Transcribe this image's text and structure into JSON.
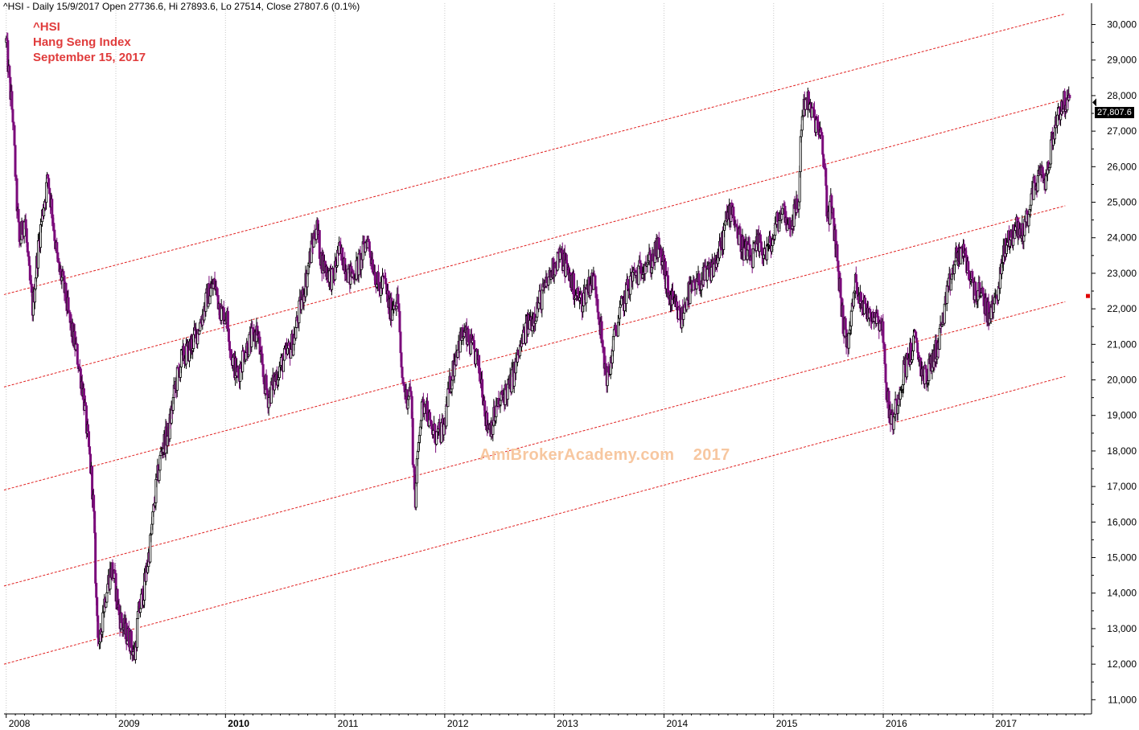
{
  "header": {
    "info_line": "^HSI - Daily 15/9/2017 Open 27736.6, Hi 27893.6, Lo 27514, Close 27807.6 (0.1%)"
  },
  "title_block": {
    "symbol": "^HSI",
    "name": "Hang Seng Index",
    "date": "September 15, 2017"
  },
  "watermark": "AmiBrokerAcademy.com    2017",
  "last_price_label": "27,807.6",
  "colors": {
    "background": "#ffffff",
    "price_bars": "#7a0a7a",
    "price_bars_dark": "#000000",
    "channel_lines": "#e02020",
    "grid": "#c8c8c8",
    "title_text": "#e03c3c",
    "watermark": "#f7c7a0"
  },
  "chart_data": {
    "type": "candlestick",
    "title": "^HSI Hang Seng Index",
    "xlabel": "",
    "ylabel": "",
    "y_scale": "linear",
    "ylim": [
      10600,
      30600
    ],
    "x_range": [
      2007.98,
      2017.9
    ],
    "grid": "vertical yearly gridlines",
    "y_ticks": [
      "11,000",
      "12,000",
      "13,000",
      "14,000",
      "15,000",
      "16,000",
      "17,000",
      "18,000",
      "19,000",
      "20,000",
      "21,000",
      "22,000",
      "23,000",
      "24,000",
      "25,000",
      "26,000",
      "27,000",
      "28,000",
      "29,000",
      "30,000"
    ],
    "y_tick_values": [
      11000,
      12000,
      13000,
      14000,
      15000,
      16000,
      17000,
      18000,
      19000,
      20000,
      21000,
      22000,
      23000,
      24000,
      25000,
      26000,
      27000,
      28000,
      29000,
      30000
    ],
    "x_ticks": [
      {
        "label": "2008",
        "value": 2008.0
      },
      {
        "label": "2009",
        "value": 2009.0
      },
      {
        "label": "2010",
        "value": 2010.0
      },
      {
        "label": "2011",
        "value": 2011.0
      },
      {
        "label": "2012",
        "value": 2012.0
      },
      {
        "label": "2013",
        "value": 2013.0
      },
      {
        "label": "2014",
        "value": 2014.0
      },
      {
        "label": "2015",
        "value": 2015.0
      },
      {
        "label": "2016",
        "value": 2016.0
      },
      {
        "label": "2017",
        "value": 2017.0
      }
    ],
    "price_path": [
      [
        2008.0,
        29500
      ],
      [
        2008.03,
        28300
      ],
      [
        2008.06,
        27400
      ],
      [
        2008.09,
        25300
      ],
      [
        2008.12,
        23800
      ],
      [
        2008.17,
        24600
      ],
      [
        2008.2,
        23200
      ],
      [
        2008.24,
        22000
      ],
      [
        2008.28,
        23400
      ],
      [
        2008.33,
        24700
      ],
      [
        2008.38,
        25700
      ],
      [
        2008.42,
        24700
      ],
      [
        2008.47,
        23200
      ],
      [
        2008.52,
        22700
      ],
      [
        2008.58,
        21600
      ],
      [
        2008.64,
        20800
      ],
      [
        2008.7,
        19700
      ],
      [
        2008.74,
        18400
      ],
      [
        2008.78,
        17200
      ],
      [
        2008.8,
        16000
      ],
      [
        2008.82,
        13800
      ],
      [
        2008.85,
        12300
      ],
      [
        2008.88,
        13500
      ],
      [
        2008.92,
        14200
      ],
      [
        2008.96,
        14700
      ],
      [
        2008.99,
        14300
      ],
      [
        2009.03,
        13400
      ],
      [
        2009.08,
        12900
      ],
      [
        2009.13,
        12700
      ],
      [
        2009.17,
        12200
      ],
      [
        2009.2,
        13300
      ],
      [
        2009.26,
        14200
      ],
      [
        2009.31,
        15300
      ],
      [
        2009.36,
        16800
      ],
      [
        2009.42,
        18100
      ],
      [
        2009.48,
        18500
      ],
      [
        2009.54,
        19800
      ],
      [
        2009.6,
        20600
      ],
      [
        2009.66,
        20800
      ],
      [
        2009.72,
        21200
      ],
      [
        2009.78,
        21700
      ],
      [
        2009.84,
        22400
      ],
      [
        2009.9,
        22700
      ],
      [
        2009.96,
        21900
      ],
      [
        2010.01,
        21800
      ],
      [
        2010.06,
        20600
      ],
      [
        2010.11,
        20100
      ],
      [
        2010.17,
        20800
      ],
      [
        2010.23,
        21100
      ],
      [
        2010.29,
        21400
      ],
      [
        2010.34,
        20100
      ],
      [
        2010.39,
        19500
      ],
      [
        2010.44,
        19900
      ],
      [
        2010.5,
        20400
      ],
      [
        2010.56,
        20700
      ],
      [
        2010.62,
        21100
      ],
      [
        2010.67,
        21900
      ],
      [
        2010.72,
        22600
      ],
      [
        2010.78,
        23600
      ],
      [
        2010.83,
        24400
      ],
      [
        2010.87,
        23400
      ],
      [
        2010.92,
        23100
      ],
      [
        2010.98,
        22800
      ],
      [
        2011.03,
        23600
      ],
      [
        2011.08,
        23400
      ],
      [
        2011.13,
        22900
      ],
      [
        2011.19,
        23100
      ],
      [
        2011.24,
        23400
      ],
      [
        2011.29,
        24000
      ],
      [
        2011.35,
        23200
      ],
      [
        2011.4,
        22500
      ],
      [
        2011.45,
        22800
      ],
      [
        2011.5,
        21900
      ],
      [
        2011.55,
        22300
      ],
      [
        2011.58,
        22100
      ],
      [
        2011.6,
        20200
      ],
      [
        2011.65,
        19500
      ],
      [
        2011.69,
        19800
      ],
      [
        2011.71,
        17800
      ],
      [
        2011.73,
        16600
      ],
      [
        2011.77,
        18800
      ],
      [
        2011.82,
        19500
      ],
      [
        2011.87,
        18600
      ],
      [
        2011.93,
        18400
      ],
      [
        2011.99,
        18600
      ],
      [
        2012.05,
        19900
      ],
      [
        2012.11,
        20900
      ],
      [
        2012.17,
        21300
      ],
      [
        2012.23,
        21000
      ],
      [
        2012.29,
        20600
      ],
      [
        2012.34,
        19900
      ],
      [
        2012.38,
        18800
      ],
      [
        2012.42,
        18700
      ],
      [
        2012.48,
        19200
      ],
      [
        2012.54,
        19600
      ],
      [
        2012.59,
        19800
      ],
      [
        2012.64,
        20300
      ],
      [
        2012.69,
        20900
      ],
      [
        2012.75,
        21500
      ],
      [
        2012.81,
        21800
      ],
      [
        2012.86,
        22200
      ],
      [
        2012.92,
        22600
      ],
      [
        2012.98,
        23100
      ],
      [
        2013.04,
        23500
      ],
      [
        2013.09,
        23300
      ],
      [
        2013.14,
        22900
      ],
      [
        2013.2,
        22400
      ],
      [
        2013.25,
        22200
      ],
      [
        2013.31,
        22700
      ],
      [
        2013.37,
        22800
      ],
      [
        2013.41,
        21800
      ],
      [
        2013.45,
        20500
      ],
      [
        2013.49,
        20000
      ],
      [
        2013.54,
        21100
      ],
      [
        2013.6,
        21900
      ],
      [
        2013.65,
        22400
      ],
      [
        2013.71,
        22900
      ],
      [
        2013.77,
        23000
      ],
      [
        2013.83,
        23400
      ],
      [
        2013.88,
        23300
      ],
      [
        2013.94,
        23700
      ],
      [
        2013.99,
        23300
      ],
      [
        2014.04,
        22400
      ],
      [
        2014.1,
        22000
      ],
      [
        2014.16,
        21700
      ],
      [
        2014.21,
        22400
      ],
      [
        2014.27,
        22500
      ],
      [
        2014.33,
        22800
      ],
      [
        2014.39,
        22900
      ],
      [
        2014.45,
        23200
      ],
      [
        2014.51,
        23600
      ],
      [
        2014.57,
        24500
      ],
      [
        2014.62,
        24900
      ],
      [
        2014.68,
        24000
      ],
      [
        2014.74,
        23600
      ],
      [
        2014.8,
        23400
      ],
      [
        2014.86,
        23800
      ],
      [
        2014.92,
        23600
      ],
      [
        2014.98,
        23800
      ],
      [
        2015.04,
        24500
      ],
      [
        2015.09,
        24800
      ],
      [
        2015.14,
        24300
      ],
      [
        2015.19,
        24700
      ],
      [
        2015.23,
        25000
      ],
      [
        2015.25,
        27200
      ],
      [
        2015.29,
        28000
      ],
      [
        2015.33,
        27600
      ],
      [
        2015.38,
        27300
      ],
      [
        2015.43,
        26800
      ],
      [
        2015.47,
        25800
      ],
      [
        2015.49,
        24500
      ],
      [
        2015.52,
        24900
      ],
      [
        2015.56,
        24000
      ],
      [
        2015.6,
        22700
      ],
      [
        2015.63,
        21700
      ],
      [
        2015.67,
        21000
      ],
      [
        2015.7,
        21500
      ],
      [
        2015.74,
        22700
      ],
      [
        2015.78,
        22500
      ],
      [
        2015.83,
        22000
      ],
      [
        2015.88,
        21900
      ],
      [
        2015.94,
        21800
      ],
      [
        2015.99,
        21600
      ],
      [
        2016.02,
        20000
      ],
      [
        2016.05,
        19200
      ],
      [
        2016.08,
        18800
      ],
      [
        2016.12,
        19300
      ],
      [
        2016.18,
        20200
      ],
      [
        2016.24,
        20700
      ],
      [
        2016.29,
        21100
      ],
      [
        2016.34,
        20400
      ],
      [
        2016.39,
        20000
      ],
      [
        2016.44,
        20500
      ],
      [
        2016.5,
        21000
      ],
      [
        2016.56,
        22000
      ],
      [
        2016.62,
        22900
      ],
      [
        2016.67,
        23500
      ],
      [
        2016.72,
        23600
      ],
      [
        2016.77,
        23200
      ],
      [
        2016.82,
        22600
      ],
      [
        2016.87,
        22400
      ],
      [
        2016.92,
        22200
      ],
      [
        2016.96,
        21800
      ],
      [
        2017.0,
        22000
      ],
      [
        2017.06,
        22800
      ],
      [
        2017.11,
        23700
      ],
      [
        2017.16,
        24000
      ],
      [
        2017.21,
        24300
      ],
      [
        2017.26,
        24100
      ],
      [
        2017.31,
        24500
      ],
      [
        2017.36,
        25300
      ],
      [
        2017.41,
        25700
      ],
      [
        2017.45,
        25800
      ],
      [
        2017.49,
        25600
      ],
      [
        2017.53,
        26600
      ],
      [
        2017.58,
        27400
      ],
      [
        2017.62,
        27700
      ],
      [
        2017.66,
        27800
      ],
      [
        2017.7,
        27800
      ]
    ],
    "channel_lines": [
      {
        "x": [
          2007.98,
          2017.66
        ],
        "y": [
          22400,
          30300
        ]
      },
      {
        "x": [
          2007.98,
          2017.66
        ],
        "y": [
          19800,
          27900
        ]
      },
      {
        "x": [
          2007.98,
          2017.66
        ],
        "y": [
          16900,
          24900
        ]
      },
      {
        "x": [
          2007.98,
          2017.66
        ],
        "y": [
          14200,
          22200
        ]
      },
      {
        "x": [
          2007.98,
          2017.66
        ],
        "y": [
          12000,
          20100
        ]
      }
    ],
    "last_close": 27807.6
  }
}
